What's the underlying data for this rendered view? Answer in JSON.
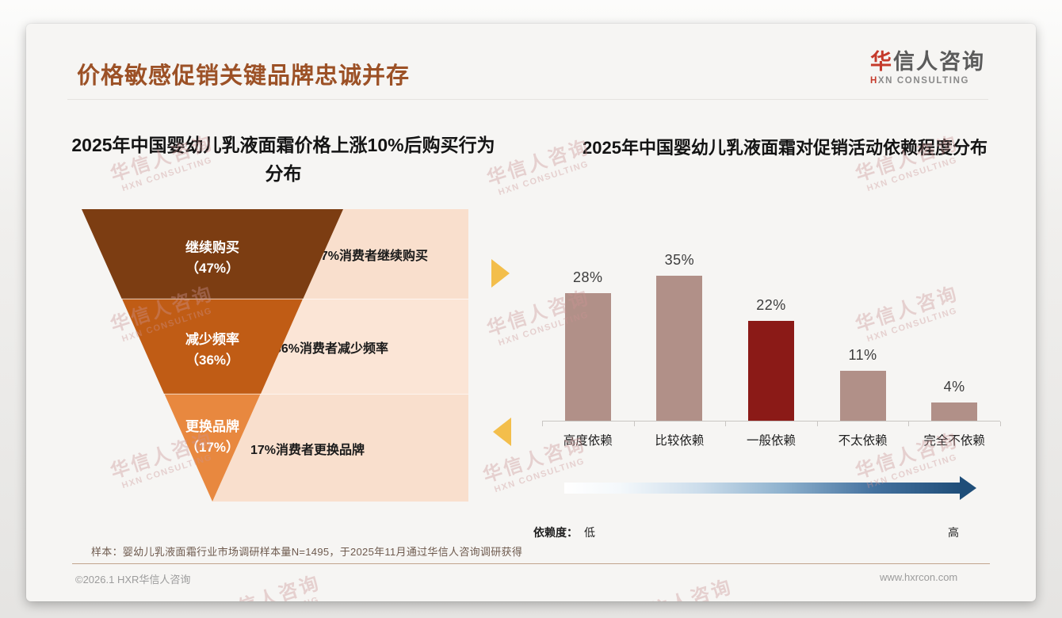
{
  "slide": {
    "title": "价格敏感促销关键品牌忠诚并存",
    "logo": {
      "cn_accent": "华",
      "cn_rest": "信人咨询",
      "en_accent": "H",
      "en_rest": "XN CONSULTING"
    },
    "watermark": {
      "cn": "华信人咨询",
      "en": "HXN CONSULTING"
    },
    "footnote": "样本：婴幼儿乳液面霜行业市场调研样本量N=1495，于2025年11月通过华信人咨询调研获得",
    "copyright": "©2026.1 HXR华信人咨询",
    "website": "www.hxrcon.com"
  },
  "chart_data": [
    {
      "type": "funnel",
      "title": "2025年中国婴幼儿乳液面霜价格上涨10%后购买行为分布",
      "title_lines": [
        "2025年中国婴幼儿乳液面霜价格上涨10%后购买行为",
        "分布"
      ],
      "segments": [
        {
          "label": "继续购买",
          "value": 47,
          "pct_label": "（47%）",
          "annotation": "47%消费者继续购买",
          "color": "#7C3D12"
        },
        {
          "label": "减少频率",
          "value": 36,
          "pct_label": "（36%）",
          "annotation": "36%消费者减少频率",
          "color": "#C05C15"
        },
        {
          "label": "更换品牌",
          "value": 17,
          "pct_label": "（17%）",
          "annotation": "17%消费者更换品牌",
          "color": "#E8883F"
        }
      ],
      "accent_arrow_color": "#F3BE4B"
    },
    {
      "type": "bar",
      "title": "2025年中国婴幼儿乳液面霜对促销活动依赖程度分布",
      "categories": [
        "高度依赖",
        "比较依赖",
        "一般依赖",
        "不太依赖",
        "完全不依赖"
      ],
      "values": [
        28,
        35,
        22,
        11,
        4
      ],
      "value_labels": [
        "28%",
        "35%",
        "22%",
        "11%",
        "4%"
      ],
      "bar_colors": [
        "#B19088",
        "#B19088",
        "#8B1A17",
        "#B19088",
        "#B19088"
      ],
      "highlight_index": 2,
      "ylim": [
        0,
        37
      ],
      "grid": false,
      "legend_axis": {
        "label": "依赖度：",
        "low": "低",
        "high": "高",
        "gradient": [
          "#FFFFFF",
          "#1F4E79"
        ]
      }
    }
  ]
}
